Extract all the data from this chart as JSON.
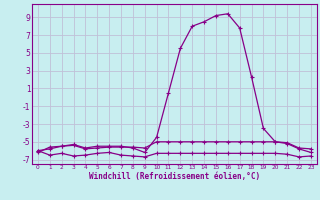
{
  "xlabel": "Windchill (Refroidissement éolien,°C)",
  "ylabel": "",
  "xlim": [
    -0.5,
    23.5
  ],
  "ylim": [
    -7.5,
    10.5
  ],
  "xticks": [
    0,
    1,
    2,
    3,
    4,
    5,
    6,
    7,
    8,
    9,
    10,
    11,
    12,
    13,
    14,
    15,
    16,
    17,
    18,
    19,
    20,
    21,
    22,
    23
  ],
  "yticks": [
    -7,
    -5,
    -3,
    -1,
    1,
    3,
    5,
    7,
    9
  ],
  "background_color": "#c8eef0",
  "grid_color": "#c0c0d8",
  "line_color": "#880088",
  "series1_x": [
    0,
    1,
    2,
    3,
    4,
    5,
    6,
    7,
    8,
    9,
    10,
    11,
    12,
    13,
    14,
    15,
    16,
    17,
    18,
    19,
    20,
    21,
    22,
    23
  ],
  "series1_y": [
    -6.2,
    -5.6,
    -5.5,
    -5.4,
    -5.8,
    -5.7,
    -5.6,
    -5.6,
    -5.6,
    -5.7,
    -5.0,
    -5.0,
    -5.0,
    -5.0,
    -5.0,
    -5.0,
    -5.0,
    -5.0,
    -5.0,
    -5.0,
    -5.0,
    -5.1,
    -5.7,
    -5.8
  ],
  "series2_x": [
    0,
    1,
    2,
    3,
    4,
    5,
    6,
    7,
    8,
    9,
    10,
    11,
    12,
    13,
    14,
    15,
    16,
    17,
    18,
    19,
    20,
    21,
    22,
    23
  ],
  "series2_y": [
    -6.0,
    -6.5,
    -6.3,
    -6.6,
    -6.5,
    -6.3,
    -6.2,
    -6.5,
    -6.6,
    -6.7,
    -6.3,
    -6.3,
    -6.3,
    -6.3,
    -6.3,
    -6.3,
    -6.3,
    -6.3,
    -6.3,
    -6.3,
    -6.3,
    -6.4,
    -6.7,
    -6.6
  ],
  "series3_x": [
    0,
    1,
    2,
    3,
    4,
    5,
    6,
    7,
    8,
    9,
    10,
    11,
    12,
    13,
    14,
    15,
    16,
    17,
    18,
    19,
    20,
    21,
    22,
    23
  ],
  "series3_y": [
    -6.0,
    -5.8,
    -5.5,
    -5.3,
    -5.7,
    -5.5,
    -5.5,
    -5.5,
    -5.7,
    -6.2,
    -4.5,
    0.5,
    5.5,
    8.0,
    8.5,
    9.2,
    9.4,
    7.8,
    2.3,
    -3.5,
    -5.0,
    -5.2,
    -5.8,
    -6.2
  ]
}
